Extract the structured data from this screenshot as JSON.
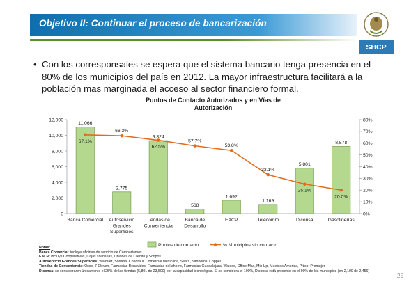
{
  "slide": {
    "title": "Objetivo II: Continuar el proceso de bancarización",
    "logo_text": "SHCP",
    "bullet": "Con los corresponsales se espera que el sistema bancario tenga presencia en el 80% de los municipios del país en 2012. La mayor infraestructura facilitará a la población mas marginada el acceso al sector financiero formal.",
    "page_number": "25",
    "colors": {
      "banner": "#0f6fae",
      "banner_light": "#3b9ad6",
      "accent_green": "#5a8f2a",
      "logo_bg": "#2c7bb6"
    }
  },
  "notes": {
    "heading": "Notas:",
    "lines": [
      {
        "label": "Banca Comercial",
        "text": ": incluye oficinas de servicio de Compartamos"
      },
      {
        "label": "EACP",
        "text": ": incluye Cooperativas, Cajas solidarias, Uniones de Crédito y Sofipos"
      },
      {
        "label": "Autoservicio Grandes Superficies",
        "text": ": Walmart, Soriana, Chedraui, Comercial Mexicana, Sears, Sanborns, Coppel"
      },
      {
        "label": "Tiendas de Conveniencia",
        "text": ": Oxxo, 7 Eleven, Farmacias Benavides, Farmacias del ahorro, Farmacias Guadalajara, Waldos, Office Max, Mix Up, Muebles América, Pitico, Promujer"
      },
      {
        "label": "Diconsa",
        "text": ": se consideraron únicamente el 25% de las tiendas (5,801 de 23,500) por la capacidad tecnológica. Si se considera el 100%, Diconsa está presente en el 90% de los municipios (en 2,199 de 2,456)"
      }
    ]
  },
  "chart_data": {
    "type": "bar",
    "title": "Puntos de Contacto Autorizados y en Vías de Autorización",
    "categories": [
      [
        "Banca Comercial"
      ],
      [
        "Autoservicio",
        "Grandes",
        "Superficies"
      ],
      [
        "Tiendas de",
        "Conveniencia"
      ],
      [
        "Banca de",
        "Desarrollo"
      ],
      [
        "EACP"
      ],
      [
        "Telecomm"
      ],
      [
        "Diconsa"
      ],
      [
        "Gasolinerías"
      ]
    ],
    "series": [
      {
        "name": "Puntos de contacto",
        "type": "bar",
        "axis": "left",
        "color": "#b5d88f",
        "border": "#7ea556",
        "values": [
          11066,
          2775,
          9324,
          568,
          1692,
          1169,
          5801,
          8578
        ],
        "labels": [
          "11,066",
          "2,775",
          "9,324",
          "568",
          "1,692",
          "1,169",
          "5,801",
          "8,578"
        ]
      },
      {
        "name": "% Municipios sin contacto",
        "type": "line",
        "axis": "right",
        "color": "#e36c1a",
        "values": [
          67.1,
          66.3,
          62.5,
          57.7,
          53.8,
          33.1,
          25.1,
          20.0
        ],
        "labels": [
          "67.1%",
          "66.3%",
          "62.5%",
          "57.7%",
          "53.8%",
          "33.1%",
          "25.1%",
          "20.0%"
        ]
      }
    ],
    "y_left": {
      "min": 0,
      "max": 12000,
      "ticks": [
        "0",
        "2,000",
        "4,000",
        "6,000",
        "8,000",
        "10,000",
        "12,000"
      ]
    },
    "y_right": {
      "min": 0,
      "max": 80,
      "ticks": [
        "0%",
        "10%",
        "20%",
        "30%",
        "40%",
        "50%",
        "60%",
        "70%",
        "80%"
      ]
    },
    "legend_position": "bottom"
  }
}
